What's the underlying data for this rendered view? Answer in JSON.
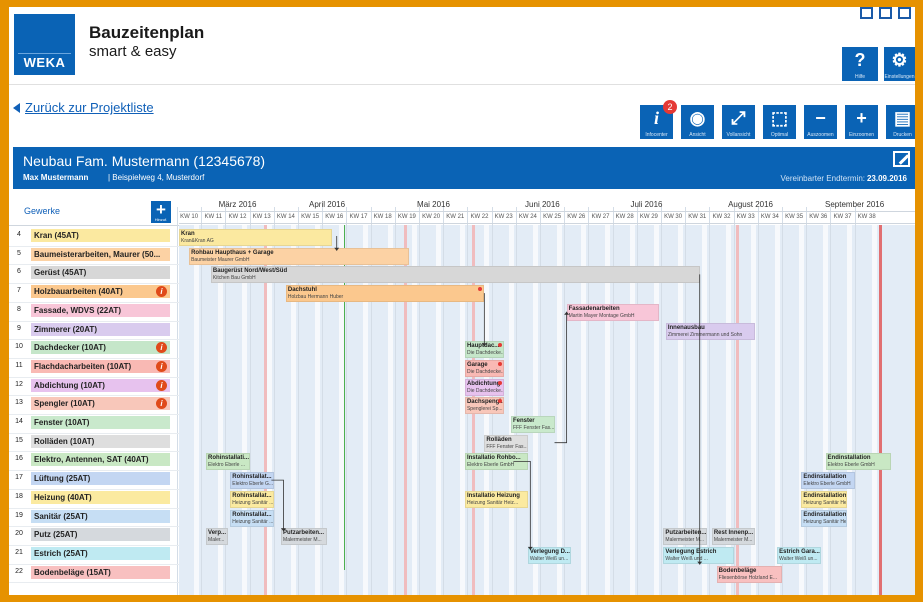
{
  "app": {
    "title": "Bauzeitenplan",
    "subtitle": "smart & easy",
    "logo_text": "WEKA",
    "toolbar_top": [
      {
        "icon": "help-icon",
        "glyph": "?",
        "label": "Hilfe"
      },
      {
        "icon": "gear-icon",
        "glyph": "⚙",
        "label": "Einstellungen"
      }
    ],
    "back_label": "Zurück zur Projektliste",
    "toolbar": [
      {
        "icon": "info-icon",
        "glyph": "i",
        "label": "Infocenter"
      },
      {
        "icon": "eye-icon",
        "glyph": "◉",
        "label": "Ansicht"
      },
      {
        "icon": "fullscreen-icon",
        "glyph": "⤢",
        "label": "Vollansicht"
      },
      {
        "icon": "optimal-icon",
        "glyph": "⬚",
        "label": "Optimal"
      },
      {
        "icon": "zoom-out-icon",
        "glyph": "−",
        "label": "Auszoomen"
      },
      {
        "icon": "zoom-in-icon",
        "glyph": "+",
        "label": "Einzoomen"
      },
      {
        "icon": "print-icon",
        "glyph": "▤",
        "label": "Drucken"
      }
    ],
    "info_badge": "2"
  },
  "project": {
    "title": "Neubau Fam. Mustermann (12345678)",
    "owner": "Max Mustermann",
    "address": "| Beispielweg 4, Musterdorf",
    "end_label": "Vereinbarter Endtermin:",
    "end_date": "23.09.2016"
  },
  "gantt": {
    "gewerke_label": "Gewerke",
    "add_label": "Hinzuf.",
    "months": [
      "März 2016",
      "April 2016",
      "Mai 2016",
      "Juni 2016",
      "Juli 2016",
      "August 2016",
      "September 2016"
    ],
    "weeks": [
      "KW 10",
      "KW 11",
      "KW 12",
      "KW 13",
      "KW 14",
      "KW 15",
      "KW 16",
      "KW 17",
      "KW 18",
      "KW 19",
      "KW 20",
      "KW 21",
      "KW 22",
      "KW 23",
      "KW 24",
      "KW 25",
      "KW 26",
      "KW 27",
      "KW 28",
      "KW 29",
      "KW 30",
      "KW 31",
      "KW 32",
      "KW 33",
      "KW 34",
      "KW 35",
      "KW 36",
      "KW 37",
      "KW 38"
    ],
    "rows": [
      {
        "num": "4",
        "label": "Kran (45AT)",
        "color": "#fbe9a0",
        "warn": false
      },
      {
        "num": "5",
        "label": "Baumeisterarbeiten, Maurer (50...",
        "color": "#fcd2a4",
        "warn": false
      },
      {
        "num": "6",
        "label": "Gerüst (45AT)",
        "color": "#d7d7d7",
        "warn": false
      },
      {
        "num": "7",
        "label": "Holzbauarbeiten (40AT)",
        "color": "#fbc88e",
        "warn": true
      },
      {
        "num": "8",
        "label": "Fassade, WDVS (22AT)",
        "color": "#f8c6d8",
        "warn": false
      },
      {
        "num": "9",
        "label": "Zimmerer (20AT)",
        "color": "#d9cbee",
        "warn": false
      },
      {
        "num": "10",
        "label": "Dachdecker (10AT)",
        "color": "#c5e6c9",
        "warn": true
      },
      {
        "num": "11",
        "label": "Flachdacharbeiten (10AT)",
        "color": "#f9b9b4",
        "warn": true
      },
      {
        "num": "12",
        "label": "Abdichtung (10AT)",
        "color": "#e7c2ee",
        "warn": true
      },
      {
        "num": "13",
        "label": "Spengler (10AT)",
        "color": "#f8c7ba",
        "warn": true
      },
      {
        "num": "14",
        "label": "Fenster (10AT)",
        "color": "#c9e9cc",
        "warn": false
      },
      {
        "num": "15",
        "label": "Rolläden (10AT)",
        "color": "#dedede",
        "warn": false
      },
      {
        "num": "16",
        "label": "Elektro, Antennen, SAT (40AT)",
        "color": "#c9e8c4",
        "warn": false
      },
      {
        "num": "17",
        "label": "Lüftung (25AT)",
        "color": "#c3d6f2",
        "warn": false
      },
      {
        "num": "18",
        "label": "Heizung (40AT)",
        "color": "#fbeaa0",
        "warn": false
      },
      {
        "num": "19",
        "label": "Sanitär (25AT)",
        "color": "#c6def4",
        "warn": false
      },
      {
        "num": "20",
        "label": "Putz (25AT)",
        "color": "#d5d9dd",
        "warn": false
      },
      {
        "num": "21",
        "label": "Estrich (25AT)",
        "color": "#bfeaf2",
        "warn": false
      },
      {
        "num": "22",
        "label": "Bodenbeläge (15AT)",
        "color": "#f8c0c0",
        "warn": false
      }
    ],
    "tasks": [
      {
        "row": 0,
        "start": 0.0,
        "end": 6.4,
        "t1": "Kran",
        "t2": "Kran&Kran AG",
        "dot": false
      },
      {
        "row": 1,
        "start": 0.5,
        "end": 9.6,
        "t1": "Rohbau Haupthaus + Garage",
        "t2": "Baumeister Maurer GmbH",
        "dot": false
      },
      {
        "row": 2,
        "start": 1.4,
        "end": 21.6,
        "t1": "Baugerüst Nord/West/Süd",
        "t2": "Kitchen Bau GmbH",
        "dot": false
      },
      {
        "row": 3,
        "start": 4.5,
        "end": 12.7,
        "t1": "Dachstuhl",
        "t2": "Holzbau Hermann Huber",
        "dot": true
      },
      {
        "row": 4,
        "start": 16.1,
        "end": 19.9,
        "t1": "Fassadenarbeiten",
        "t2": "Martin Mayer Montage GmbH",
        "dot": false
      },
      {
        "row": 5,
        "start": 20.2,
        "end": 23.9,
        "t1": "Innenausbau",
        "t2": "Zimmerei Zimmermann und Sohn",
        "dot": false
      },
      {
        "row": 6,
        "start": 11.9,
        "end": 13.5,
        "t1": "Hauptdac...",
        "t2": "Die Dachdecke...",
        "dot": true
      },
      {
        "row": 7,
        "start": 11.9,
        "end": 13.5,
        "t1": "Garage",
        "t2": "Die Dachdecke...",
        "dot": true
      },
      {
        "row": 8,
        "start": 11.9,
        "end": 13.5,
        "t1": "Abdichtung",
        "t2": "Die Dachdecke...",
        "dot": true
      },
      {
        "row": 9,
        "start": 11.9,
        "end": 13.5,
        "t1": "Dachspengl...",
        "t2": "Spenglerei Sp...",
        "dot": true
      },
      {
        "row": 10,
        "start": 13.8,
        "end": 15.6,
        "t1": "Fenster",
        "t2": "FFF Fenster Fas...",
        "dot": false
      },
      {
        "row": 11,
        "start": 12.7,
        "end": 14.5,
        "t1": "Rolläden",
        "t2": "FFF Fenster Fas...",
        "dot": false
      },
      {
        "row": 12,
        "start": 1.2,
        "end": 3.0,
        "t1": "Rohinstallati...",
        "t2": "Elektro Eberle ...",
        "dot": false
      },
      {
        "row": 12,
        "start": 11.9,
        "end": 14.5,
        "t1": "Installatio Rohbo...",
        "t2": "Elektro Eberle GmbH",
        "dot": false
      },
      {
        "row": 12,
        "start": 26.8,
        "end": 29.5,
        "t1": "Endinstallation",
        "t2": "Elektro Eberle GmbH",
        "dot": false
      },
      {
        "row": 13,
        "start": 2.2,
        "end": 4.0,
        "t1": "Rohinstallat...",
        "t2": "Elektro Eberle G...",
        "dot": false
      },
      {
        "row": 13,
        "start": 25.8,
        "end": 28.0,
        "t1": "Endinstallation",
        "t2": "Elektro Eberle GmbH",
        "dot": false
      },
      {
        "row": 14,
        "start": 2.2,
        "end": 4.0,
        "t1": "Rohinstallat...",
        "t2": "Heizung Sanitär ...",
        "dot": false
      },
      {
        "row": 14,
        "start": 11.9,
        "end": 14.5,
        "t1": "Installatio Heizung",
        "t2": "Heizung Sanitär Heiz...",
        "dot": false
      },
      {
        "row": 14,
        "start": 25.8,
        "end": 27.7,
        "t1": "Endinstallation",
        "t2": "Heizung Sanitär Heinz Sc...",
        "dot": false
      },
      {
        "row": 15,
        "start": 2.2,
        "end": 4.0,
        "t1": "Rohinstallat...",
        "t2": "Heizung Sanitär ...",
        "dot": false
      },
      {
        "row": 15,
        "start": 25.8,
        "end": 27.7,
        "t1": "Endinstallation",
        "t2": "Heizung Sanitär Heinz Sc...",
        "dot": false
      },
      {
        "row": 16,
        "start": 1.2,
        "end": 2.1,
        "t1": "Verp...",
        "t2": "Maler...",
        "dot": false
      },
      {
        "row": 16,
        "start": 4.3,
        "end": 6.2,
        "t1": "Putzarbeiten...",
        "t2": "Malermeister M...",
        "dot": false
      },
      {
        "row": 16,
        "start": 20.1,
        "end": 21.9,
        "t1": "Putzarbeiten...",
        "t2": "Malermeister M...",
        "dot": false
      },
      {
        "row": 16,
        "start": 22.1,
        "end": 23.9,
        "t1": "Rest Innenp...",
        "t2": "Malermeister M...",
        "dot": false
      },
      {
        "row": 17,
        "start": 14.5,
        "end": 16.3,
        "t1": "Verlegung D...",
        "t2": "Walter Weiß un...",
        "dot": false
      },
      {
        "row": 17,
        "start": 20.1,
        "end": 23.0,
        "t1": "Verlegung Estrich",
        "t2": "Walter Weiß und ...",
        "dot": false
      },
      {
        "row": 17,
        "start": 24.8,
        "end": 26.6,
        "t1": "Estrich Gara...",
        "t2": "Walter Weiß un...",
        "dot": false
      },
      {
        "row": 18,
        "start": 22.3,
        "end": 25.0,
        "t1": "Bodenbeläge",
        "t2": "Fliesenbörse Holzland E...",
        "dot": false
      }
    ]
  }
}
